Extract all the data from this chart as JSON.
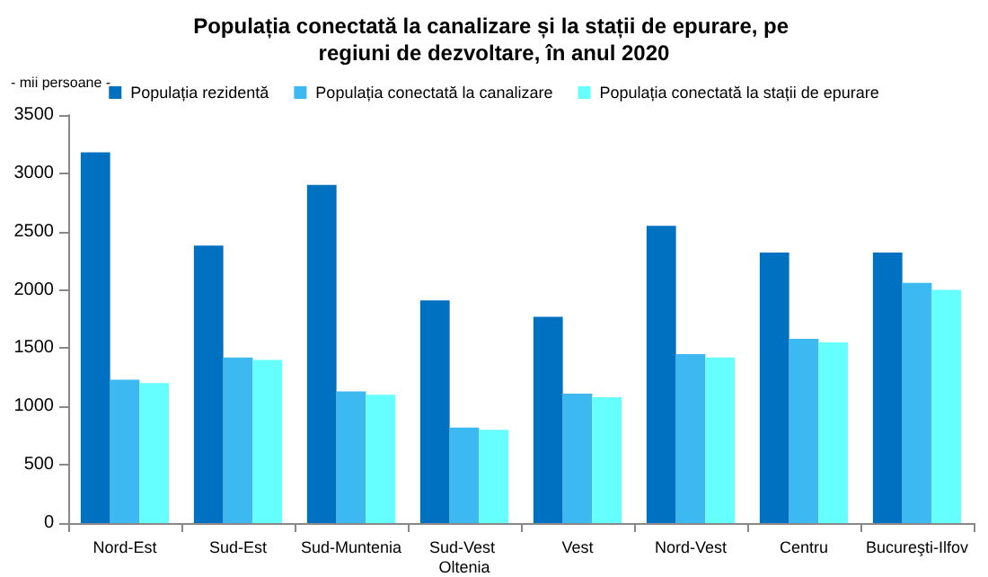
{
  "chart_data": {
    "type": "bar",
    "title": "Populația conectată la canalizare și la stații de epurare, pe regiuni de dezvoltare, în anul 2020",
    "ylabel": "- mii persoane -",
    "categories": [
      "Nord-Est",
      "Sud-Est",
      "Sud-Muntenia",
      "Sud-Vest Oltenia",
      "Vest",
      "Nord-Vest",
      "Centru",
      "Bucureşti-Ilfov"
    ],
    "series": [
      {
        "name": "Populația rezidentă",
        "color": "#0070c0",
        "values": [
          3180,
          2380,
          2900,
          1910,
          1770,
          2550,
          2320,
          2320
        ]
      },
      {
        "name": "Populația conectată la canalizare",
        "color": "#3bb9f0",
        "values": [
          1230,
          1420,
          1130,
          820,
          1110,
          1450,
          1580,
          2060
        ]
      },
      {
        "name": "Populația conectată la stații de epurare",
        "color": "#66ffff",
        "values": [
          1200,
          1400,
          1100,
          800,
          1080,
          1420,
          1550,
          2000
        ]
      }
    ],
    "ylim": [
      0,
      3500
    ],
    "yticks": [
      0,
      500,
      1000,
      1500,
      2000,
      2500,
      3000,
      3500
    ],
    "grid": false,
    "legend": "top"
  }
}
